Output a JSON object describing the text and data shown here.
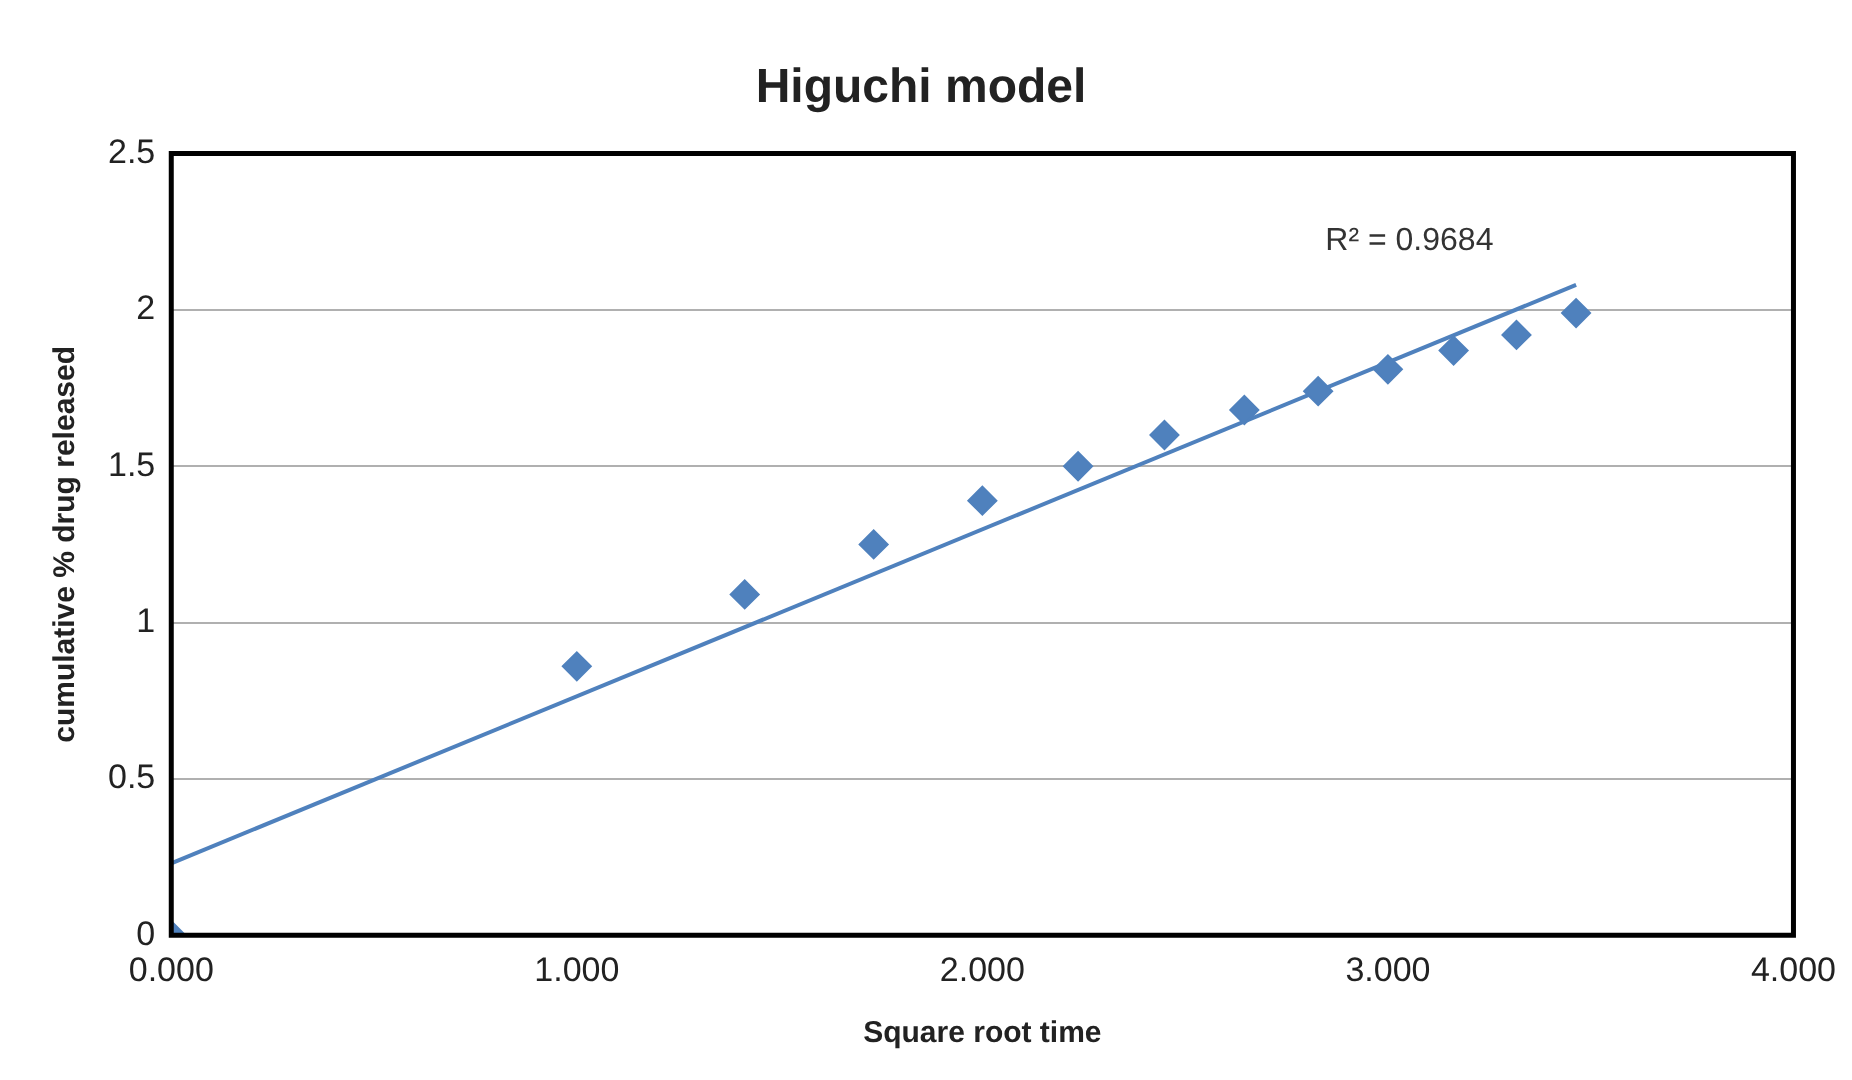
{
  "chart_data": {
    "type": "scatter",
    "title": "Higuchi model",
    "xlabel": "Square root time",
    "ylabel": "cumulative % drug released",
    "xlim": [
      0,
      4
    ],
    "xticks": [
      {
        "value": 0,
        "label": "0.000"
      },
      {
        "value": 1,
        "label": "1.000"
      },
      {
        "value": 2,
        "label": "2.000"
      },
      {
        "value": 3,
        "label": "3.000"
      },
      {
        "value": 4,
        "label": "4.000"
      }
    ],
    "ylim": [
      0,
      2.5
    ],
    "yticks": [
      0,
      0.5,
      1,
      1.5,
      2,
      2.5
    ],
    "grid": "y",
    "series": [
      {
        "type": "scatter",
        "color": "#4f81bd",
        "marker": "diamond",
        "x": [
          0,
          1,
          1.414,
          1.732,
          2,
          2.236,
          2.449,
          2.646,
          2.828,
          3,
          3.162,
          3.317,
          3.464
        ],
        "values": [
          0,
          0.86,
          1.09,
          1.25,
          1.39,
          1.5,
          1.6,
          1.68,
          1.74,
          1.81,
          1.87,
          1.92,
          1.99
        ]
      },
      {
        "type": "line",
        "color": "#4f81bd",
        "marker": "none",
        "line_style": "solid",
        "x": [
          0,
          3.464
        ],
        "values": [
          0.23,
          2.08
        ]
      }
    ],
    "annotations": [
      "R² = 0.9684"
    ]
  }
}
